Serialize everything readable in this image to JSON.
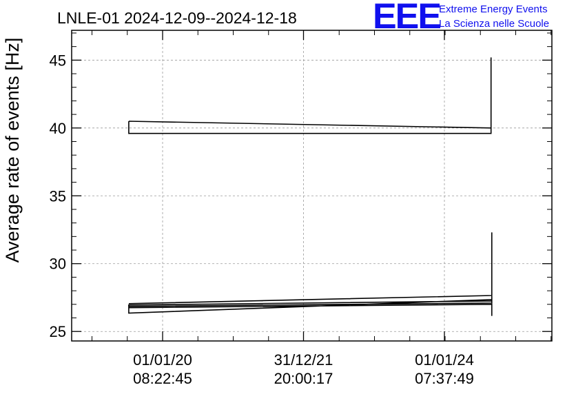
{
  "chart_data": {
    "type": "line",
    "title": "LNLE-01 2024-12-09--2024-12-18",
    "xlabel": "",
    "ylabel": "Average rate of events [Hz]",
    "ylim": [
      24.3,
      47.2
    ],
    "y_ticks": [
      25,
      30,
      35,
      40,
      45
    ],
    "x_ticks": [
      {
        "date": "01/01/20",
        "time": "08:22:45"
      },
      {
        "date": "31/12/21",
        "time": "20:00:17"
      },
      {
        "date": "01/01/24",
        "time": "07:37:49"
      }
    ],
    "grid": true,
    "series": [
      {
        "points": [
          [
            "2019-07-10",
            40.5
          ],
          [
            "2024-08-30",
            40.0
          ],
          [
            "2024-08-30",
            45.2
          ],
          [
            "2024-08-30",
            39.6
          ],
          [
            "2019-07-10",
            39.6
          ],
          [
            "2019-07-10",
            40.5
          ]
        ]
      },
      {
        "points": [
          [
            "2019-07-10",
            27.05
          ],
          [
            "2024-09-03",
            27.65
          ],
          [
            "2024-09-03",
            32.3
          ],
          [
            "2024-09-03",
            26.15
          ],
          [
            "2024-09-03",
            27.35
          ],
          [
            "2019-07-10",
            26.35
          ],
          [
            "2019-07-10",
            26.85
          ],
          [
            "2024-09-03",
            27.1
          ],
          [
            "2024-09-03",
            27.25
          ],
          [
            "2019-07-10",
            26.95
          ],
          [
            "2019-07-10",
            26.75
          ],
          [
            "2024-09-03",
            27.0
          ]
        ]
      }
    ]
  },
  "logo": {
    "text": "EEE",
    "line1": "Extreme Energy Events",
    "line2": "La Scienza nelle Scuole",
    "color": "#1010ee"
  }
}
